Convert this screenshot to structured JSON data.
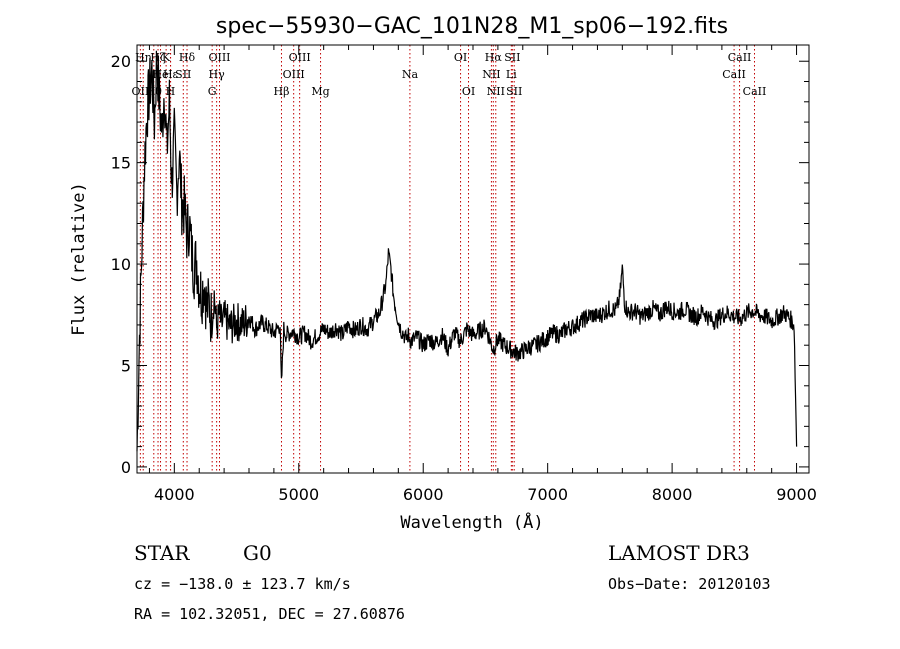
{
  "chart_data": {
    "type": "line",
    "title": "spec−55930−GAC_101N28_M1_sp06−192.fits",
    "xlabel": "Wavelength (Å)",
    "ylabel": "Flux (relative)",
    "xlim": [
      3700,
      9100
    ],
    "ylim": [
      -0.3,
      20.8
    ],
    "x_ticks": [
      4000,
      5000,
      6000,
      7000,
      8000,
      9000
    ],
    "y_ticks": [
      0,
      5,
      10,
      15,
      20
    ],
    "grid": false,
    "series": [
      {
        "line_color": "#000000",
        "x": [
          3700,
          3720,
          3740,
          3760,
          3780,
          3800,
          3820,
          3840,
          3860,
          3880,
          3900,
          3920,
          3940,
          3960,
          3980,
          4000,
          4020,
          4040,
          4060,
          4080,
          4100,
          4120,
          4140,
          4160,
          4180,
          4200,
          4220,
          4240,
          4260,
          4280,
          4300,
          4320,
          4340,
          4360,
          4380,
          4400,
          4450,
          4500,
          4550,
          4600,
          4650,
          4700,
          4750,
          4800,
          4850,
          4860,
          4880,
          4900,
          4950,
          5000,
          5050,
          5100,
          5150,
          5200,
          5250,
          5300,
          5350,
          5400,
          5450,
          5500,
          5550,
          5600,
          5650,
          5700,
          5720,
          5740,
          5760,
          5780,
          5800,
          5820,
          5840,
          5860,
          5880,
          5900,
          5950,
          6000,
          6050,
          6100,
          6150,
          6200,
          6250,
          6300,
          6350,
          6400,
          6450,
          6500,
          6550,
          6563,
          6600,
          6650,
          6700,
          6750,
          6800,
          6850,
          6900,
          6950,
          7000,
          7050,
          7100,
          7150,
          7200,
          7250,
          7300,
          7350,
          7400,
          7450,
          7500,
          7550,
          7580,
          7600,
          7620,
          7650,
          7700,
          7750,
          7800,
          7850,
          7900,
          7950,
          8000,
          8050,
          8100,
          8150,
          8200,
          8250,
          8300,
          8350,
          8400,
          8450,
          8500,
          8550,
          8600,
          8650,
          8700,
          8750,
          8800,
          8850,
          8900,
          8950,
          8980,
          9000
        ],
        "values": [
          0.8,
          6.5,
          11.0,
          15.0,
          17.5,
          18.5,
          19.5,
          17.0,
          20.3,
          18.0,
          16.5,
          18.8,
          15.5,
          18.0,
          14.0,
          16.2,
          13.5,
          15.5,
          13.0,
          12.8,
          11.5,
          12.0,
          10.5,
          9.8,
          10.2,
          9.0,
          8.5,
          9.2,
          7.8,
          8.0,
          7.2,
          8.5,
          6.8,
          7.5,
          7.0,
          7.3,
          6.9,
          7.2,
          7.0,
          7.4,
          6.8,
          7.1,
          6.9,
          6.6,
          7.0,
          4.0,
          6.8,
          6.5,
          6.7,
          6.4,
          6.6,
          6.2,
          6.5,
          6.8,
          6.6,
          6.9,
          6.5,
          7.0,
          6.7,
          7.0,
          6.8,
          7.2,
          7.6,
          9.0,
          10.5,
          9.8,
          8.5,
          7.8,
          7.2,
          6.8,
          6.6,
          6.3,
          6.5,
          6.2,
          6.4,
          6.0,
          6.3,
          6.1,
          6.5,
          5.8,
          6.6,
          6.2,
          6.8,
          6.5,
          6.7,
          6.9,
          6.0,
          5.8,
          6.3,
          6.0,
          5.8,
          5.6,
          5.7,
          5.9,
          6.0,
          6.2,
          6.4,
          6.6,
          6.5,
          6.8,
          6.9,
          7.1,
          7.3,
          7.5,
          7.4,
          7.6,
          7.8,
          7.7,
          8.4,
          9.8,
          8.0,
          7.6,
          7.7,
          7.4,
          7.6,
          7.8,
          7.5,
          7.9,
          7.7,
          7.6,
          7.8,
          7.5,
          7.4,
          7.7,
          7.3,
          7.2,
          7.5,
          7.6,
          7.4,
          7.3,
          7.6,
          7.7,
          7.5,
          7.4,
          7.2,
          7.4,
          7.6,
          7.3,
          7.0,
          1.0
        ]
      }
    ],
    "line_marker_color": "#c00000",
    "spectral_lines": [
      {
        "wl": 3727,
        "label": "OII",
        "row": 2
      },
      {
        "wl": 3750,
        "label": "Hη",
        "row": 0
      },
      {
        "wl": 3835,
        "label": "Hθ",
        "row": 2
      },
      {
        "wl": 3869,
        "label": "Hζ",
        "row": 0
      },
      {
        "wl": 3889,
        "label": "He",
        "row": 1
      },
      {
        "wl": 3934,
        "label": "K",
        "row": 0
      },
      {
        "wl": 3969,
        "label": "H",
        "row": 2
      },
      {
        "wl": 3970,
        "label": "Hε",
        "row": 1
      },
      {
        "wl": 4072,
        "label": "SII",
        "row": 1
      },
      {
        "wl": 4102,
        "label": "Hδ",
        "row": 0
      },
      {
        "wl": 4304,
        "label": "G",
        "row": 2
      },
      {
        "wl": 4340,
        "label": "Hγ",
        "row": 1
      },
      {
        "wl": 4363,
        "label": "OIII",
        "row": 0
      },
      {
        "wl": 4861,
        "label": "Hβ",
        "row": 2
      },
      {
        "wl": 4959,
        "label": "OIII",
        "row": 1
      },
      {
        "wl": 5007,
        "label": "OIII",
        "row": 0
      },
      {
        "wl": 5175,
        "label": "Mg",
        "row": 2
      },
      {
        "wl": 5893,
        "label": "Na",
        "row": 1
      },
      {
        "wl": 6300,
        "label": "OI",
        "row": 0
      },
      {
        "wl": 6364,
        "label": "OI",
        "row": 2
      },
      {
        "wl": 6548,
        "label": "NII",
        "row": 1
      },
      {
        "wl": 6563,
        "label": "Hα",
        "row": 0
      },
      {
        "wl": 6583,
        "label": "NII",
        "row": 2
      },
      {
        "wl": 6708,
        "label": "Li",
        "row": 1
      },
      {
        "wl": 6716,
        "label": "SII",
        "row": 0
      },
      {
        "wl": 6731,
        "label": "SII",
        "row": 2
      },
      {
        "wl": 8498,
        "label": "CaII",
        "row": 1
      },
      {
        "wl": 8542,
        "label": "CaII",
        "row": 0
      },
      {
        "wl": 8662,
        "label": "CaII",
        "row": 2
      }
    ]
  },
  "info": {
    "object_class": "STAR",
    "subclass": "G0",
    "survey": "LAMOST DR3",
    "cz": "cz = −138.0 ± 123.7 km/s",
    "obs_date": "Obs−Date: 20120103",
    "coords": "RA = 102.32051, DEC =  27.60876"
  }
}
